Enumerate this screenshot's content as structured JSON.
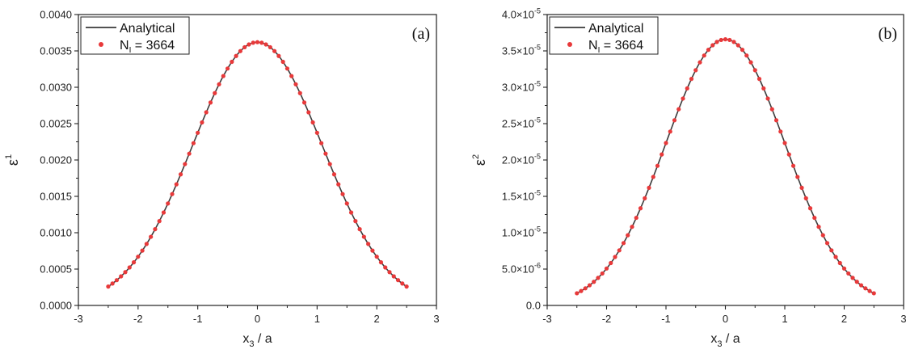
{
  "colors": {
    "analytical": "#3a3a3a",
    "numerical": "#e8393a",
    "axis": "#222222"
  },
  "chart_data": [
    {
      "type": "line",
      "panel": "(a)",
      "xlabel_main": "x",
      "xlabel_sub": "3",
      "xlabel_rest": " / a",
      "ylabel_main": "ε",
      "ylabel_sup": "1",
      "xlim": [
        -3,
        3
      ],
      "ylim": [
        0,
        0.004
      ],
      "x_ticks": [
        -3,
        -2,
        -1,
        0,
        1,
        2,
        3
      ],
      "x_tick_labels": [
        "-3",
        "-2",
        "-1",
        "0",
        "1",
        "2",
        "3"
      ],
      "y_ticks": [
        0,
        0.0005,
        0.001,
        0.0015,
        0.002,
        0.0025,
        0.003,
        0.0035,
        0.004
      ],
      "y_tick_labels": [
        "0.0000",
        "0.0005",
        "0.0010",
        "0.0015",
        "0.0020",
        "0.0025",
        "0.0030",
        "0.0035",
        "0.0040"
      ],
      "legend": {
        "position": "top-left",
        "line_label": "Analytical",
        "points_label_main": "N",
        "points_label_sub": "I",
        "points_label_rest": " = 3664"
      },
      "series": [
        {
          "name": "Analytical",
          "kind": "line",
          "peak": 0.00362,
          "halfwidth": 1.54,
          "x_range": [
            -2.5,
            2.5
          ]
        },
        {
          "name": "N_I = 3664",
          "kind": "scatter",
          "peak": 0.00362,
          "halfwidth": 1.54,
          "x_range": [
            -2.5,
            2.5
          ],
          "count": 71
        }
      ]
    },
    {
      "type": "line",
      "panel": "(b)",
      "xlabel_main": "x",
      "xlabel_sub": "3",
      "xlabel_rest": " / a",
      "ylabel_main": "ε",
      "ylabel_sup": "2",
      "xlim": [
        -3,
        3
      ],
      "ylim": [
        0,
        4e-05
      ],
      "x_ticks": [
        -3,
        -2,
        -1,
        0,
        1,
        2,
        3
      ],
      "x_tick_labels": [
        "-3",
        "-2",
        "-1",
        "0",
        "1",
        "2",
        "3"
      ],
      "y_ticks": [
        0,
        5e-06,
        1e-05,
        1.5e-05,
        2e-05,
        2.5e-05,
        3e-05,
        3.5e-05,
        4e-05
      ],
      "y_tick_labels": [
        {
          "mant": "0.0",
          "exp": ""
        },
        {
          "mant": "5.0×10",
          "exp": "-6"
        },
        {
          "mant": "1.0×10",
          "exp": "-5"
        },
        {
          "mant": "1.5×10",
          "exp": "-5"
        },
        {
          "mant": "2.0×10",
          "exp": "-5"
        },
        {
          "mant": "2.5×10",
          "exp": "-5"
        },
        {
          "mant": "3.0×10",
          "exp": "-5"
        },
        {
          "mant": "3.5×10",
          "exp": "-5"
        },
        {
          "mant": "4.0×10",
          "exp": "-5"
        }
      ],
      "legend": {
        "position": "top-left",
        "line_label": "Analytical",
        "points_label_main": "N",
        "points_label_sub": "I",
        "points_label_rest": " = 3664"
      },
      "series": [
        {
          "name": "Analytical",
          "kind": "line",
          "peak": 3.66e-05,
          "halfwidth": 1.423,
          "x_range": [
            -2.5,
            2.5
          ]
        },
        {
          "name": "N_I = 3664",
          "kind": "scatter",
          "peak": 3.66e-05,
          "halfwidth": 1.423,
          "x_range": [
            -2.5,
            2.5
          ],
          "count": 71
        }
      ]
    }
  ]
}
